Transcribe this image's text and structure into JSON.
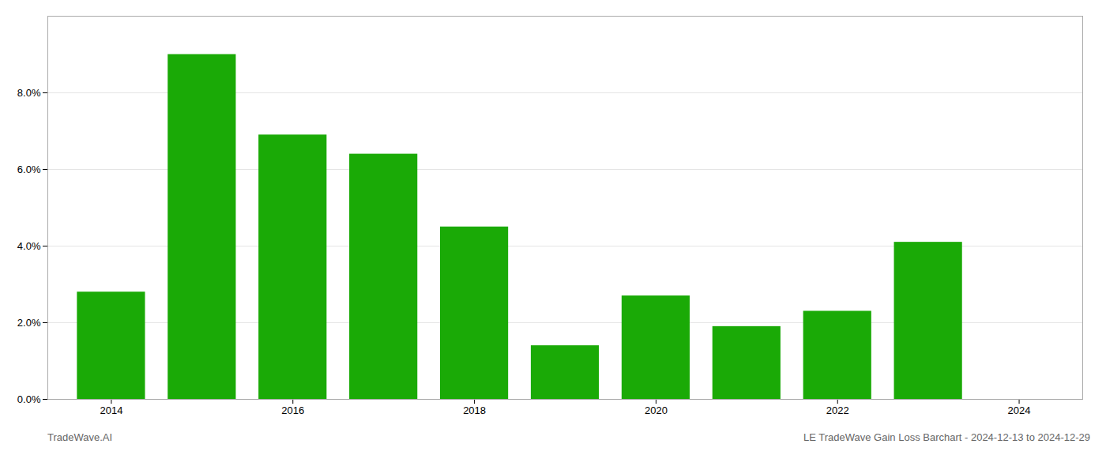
{
  "chart_data": {
    "type": "bar",
    "x": [
      2014,
      2015,
      2016,
      2017,
      2018,
      2019,
      2020,
      2021,
      2022,
      2023
    ],
    "values": [
      0.028,
      0.09,
      0.069,
      0.064,
      0.045,
      0.014,
      0.027,
      0.019,
      0.023,
      0.041
    ],
    "color": "#1aaa06",
    "xlim": [
      2013.3,
      2024.7
    ],
    "xticks": [
      2014,
      2016,
      2018,
      2020,
      2022,
      2024
    ],
    "ylim": [
      0.0,
      0.1
    ],
    "yticks": [
      {
        "value": 0.0,
        "label": "0.0%"
      },
      {
        "value": 0.02,
        "label": "2.0%"
      },
      {
        "value": 0.04,
        "label": "4.0%"
      },
      {
        "value": 0.06,
        "label": "6.0%"
      },
      {
        "value": 0.08,
        "label": "8.0%"
      }
    ],
    "grid": true,
    "annotations": [
      "TradeWave.AI",
      "LE TradeWave Gain Loss Barchart - 2024-12-13 to 2024-12-29"
    ]
  }
}
